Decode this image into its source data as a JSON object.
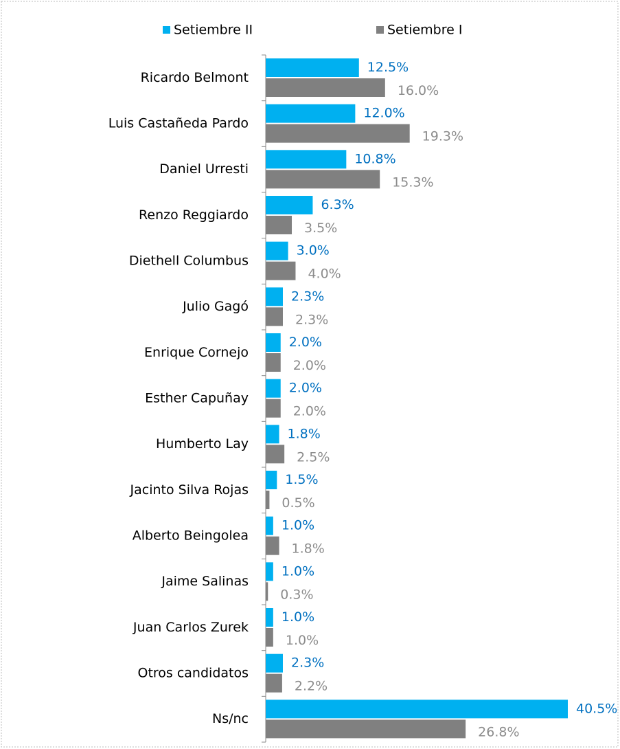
{
  "chart_data": {
    "type": "hbar",
    "categories": [
      "Ricardo Belmont",
      "Luis Castañeda Pardo",
      "Daniel Urresti",
      "Renzo Reggiardo",
      "Diethell Columbus",
      "Julio Gagó",
      "Enrique Cornejo",
      "Esther Capuñay",
      "Humberto Lay",
      "Jacinto Silva Rojas",
      "Alberto Beingolea",
      "Jaime Salinas",
      "Juan Carlos Zurek",
      "Otros candidatos",
      "Ns/nc"
    ],
    "series": [
      {
        "name": "Setiembre II",
        "color": "#00b0f0",
        "label_color": "#0070c0",
        "values": [
          12.5,
          12.0,
          10.8,
          6.3,
          3.0,
          2.3,
          2.0,
          2.0,
          1.8,
          1.5,
          1.0,
          1.0,
          1.0,
          2.3,
          40.5
        ],
        "value_labels": [
          "12.5%",
          "12.0%",
          "10.8%",
          "6.3%",
          "3.0%",
          "2.3%",
          "2.0%",
          "2.0%",
          "1.8%",
          "1.5%",
          "1.0%",
          "1.0%",
          "1.0%",
          "2.3%",
          "40.5%"
        ]
      },
      {
        "name": "Setiembre I",
        "color": "#808080",
        "label_color": "#8c8c8c",
        "values": [
          16.0,
          19.3,
          15.3,
          3.5,
          4.0,
          2.3,
          2.0,
          2.0,
          2.5,
          0.5,
          1.8,
          0.3,
          1.0,
          2.2,
          26.8
        ],
        "value_labels": [
          "16.0%",
          "19.3%",
          "15.3%",
          "3.5%",
          "4.0%",
          "2.3%",
          "2.0%",
          "2.0%",
          "2.5%",
          "0.5%",
          "1.8%",
          "0.3%",
          "1.0%",
          "2.2%",
          "26.8%"
        ]
      }
    ],
    "legend": "top"
  }
}
